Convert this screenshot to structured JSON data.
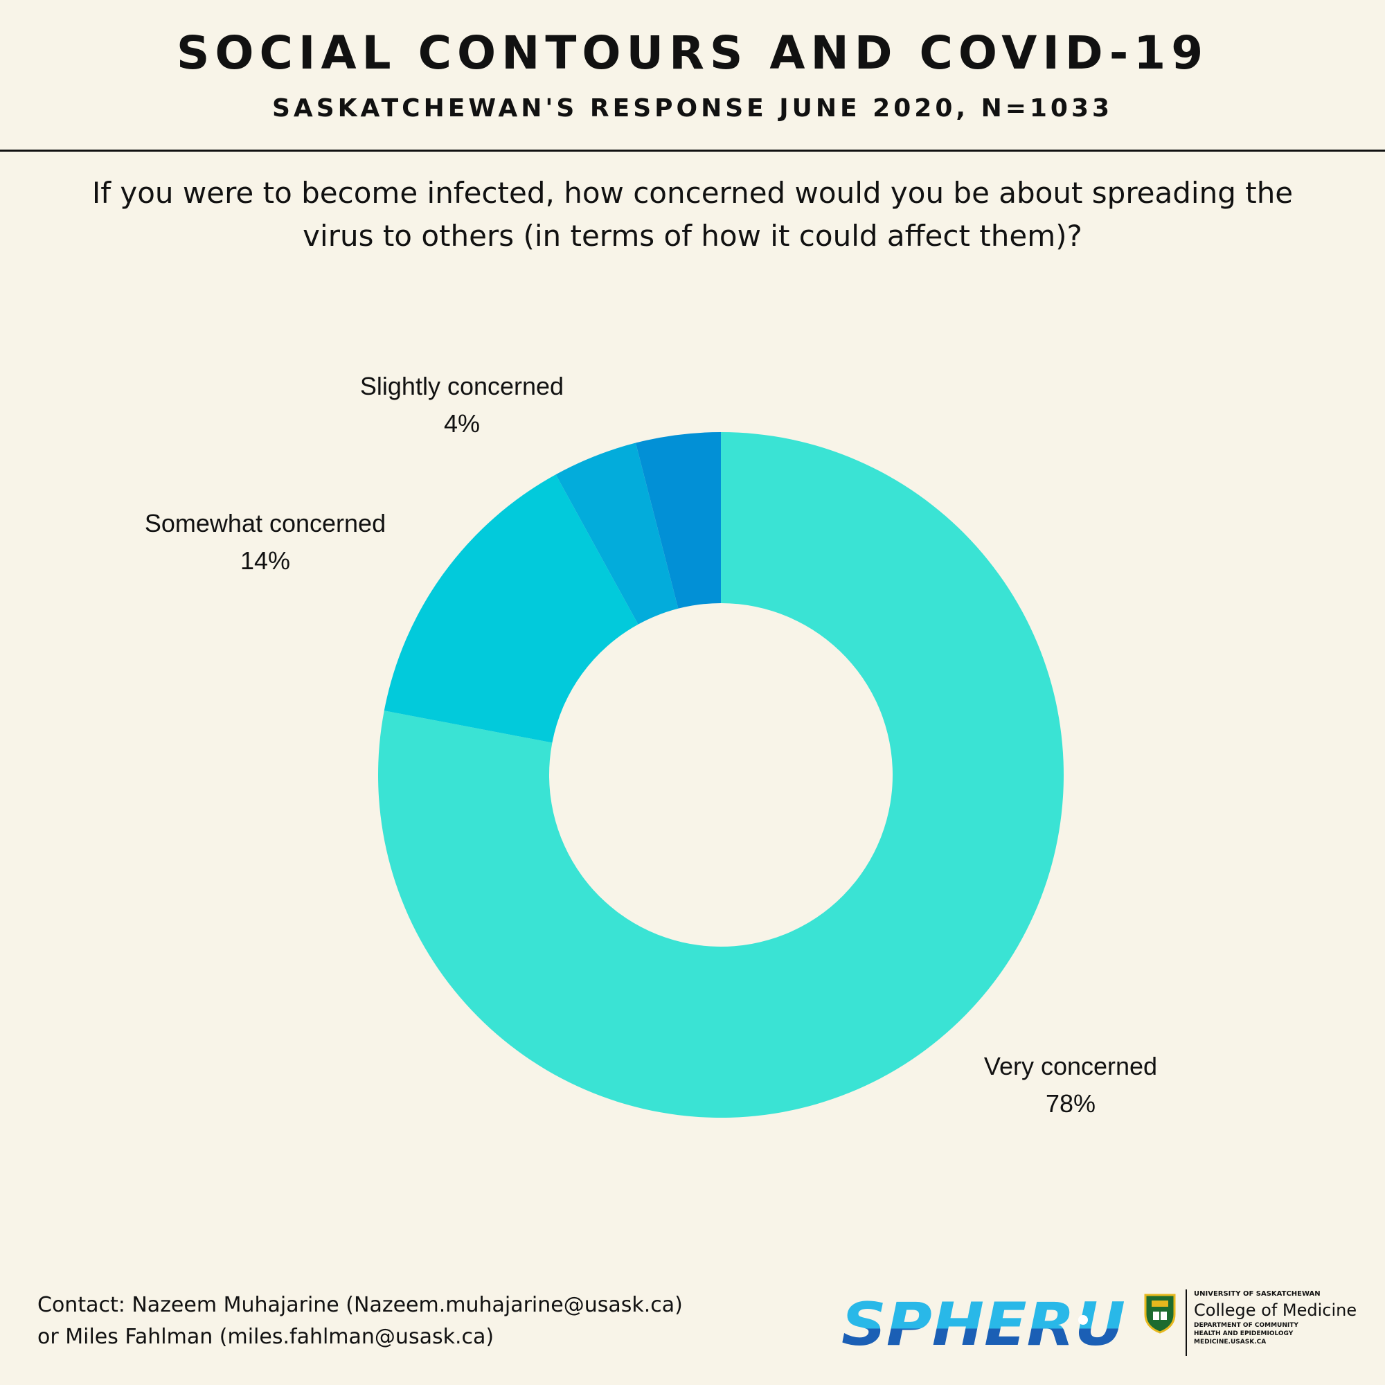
{
  "header": {
    "title": "SOCIAL CONTOURS AND COVID-19",
    "subtitle": "SASKATCHEWAN'S RESPONSE JUNE 2020, N=1033"
  },
  "question": "If you were to become infected, how concerned would you be about spreading the virus to others (in terms of how it could affect them)?",
  "chart_data": {
    "type": "pie",
    "variant": "donut",
    "title": "If you were to become infected, how concerned would you be about spreading the virus to others (in terms of how it could affect them)?",
    "slices": [
      {
        "label": "Very concerned",
        "value": 78,
        "value_label": "78%",
        "color": "#3ae3d4"
      },
      {
        "label": "Somewhat concerned",
        "value": 14,
        "value_label": "14%",
        "color": "#02cadb"
      },
      {
        "label": "Slightly concerned",
        "value": 4,
        "value_label": "4%",
        "color": "#03acdb"
      },
      {
        "label": "",
        "value": 4,
        "value_label": "",
        "color": "#0290d6"
      }
    ],
    "start": "top",
    "direction": "clockwise"
  },
  "footer": {
    "contact_line1": "Contact: Nazeem Muhajarine (Nazeem.muhajarine@usask.ca)",
    "contact_line2": "or Miles Fahlman (miles.fahlman@usask.ca)"
  },
  "logos": {
    "spheru": "SPHERU",
    "usask_university": "UNIVERSITY OF SASKATCHEWAN",
    "usask_college": "College of Medicine",
    "usask_dept1": "DEPARTMENT OF COMMUNITY",
    "usask_dept2": "HEALTH AND EPIDEMIOLOGY",
    "usask_url": "MEDICINE.USASK.CA"
  },
  "colors": {
    "background": "#f8f4e8",
    "spheru_light": "#29b8e8",
    "spheru_dark": "#1b5fb5",
    "crest_green": "#1c6b2f",
    "crest_gold": "#e6b81e"
  }
}
